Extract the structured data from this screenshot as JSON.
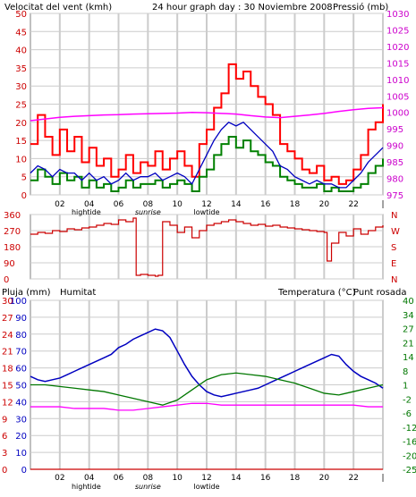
{
  "header": {
    "left_label": "Velocitat del vent (kmh)",
    "title": "24 hour graph day : 30 Noviembre 2008",
    "right_label": "Pressió (mb)"
  },
  "colors": {
    "wind_gust": "#ff0000",
    "wind_avg": "#008000",
    "wind_avg2": "#0000c0",
    "pressure": "#ff00ff",
    "direction": "#cc0000",
    "humidity": "#0000c0",
    "temperature": "#007700",
    "dewpoint": "#ff00ff",
    "rain": "#cc0000",
    "grid": "#cccccc",
    "frame": "#808080"
  },
  "time_axis": {
    "hour_ticks": [
      "02",
      "04",
      "06",
      "08",
      "10",
      "12",
      "14",
      "16",
      "18",
      "20",
      "22",
      "|"
    ],
    "events": [
      {
        "label": "hightide",
        "hour": 3.8
      },
      {
        "label": "sunrise",
        "hour": 8.0
      },
      {
        "label": "lowtide",
        "hour": 12.0
      }
    ]
  },
  "bottom_panel_labels": {
    "rain": "Pluja (mm)",
    "humidity": "Humitat",
    "temperature": "Temperatura (°C)",
    "dewpoint": "Punt rosada"
  },
  "chart_data": [
    {
      "type": "line",
      "title": "24 hour graph day : 30 Noviembre 2008",
      "ylabel": "Velocitat del vent (kmh)",
      "y2label": "Pressió (mb)",
      "x_unit": "hour",
      "xlim": [
        0,
        24
      ],
      "ylim": [
        0,
        50
      ],
      "y_ticks": [
        "0",
        "5",
        "10",
        "15",
        "20",
        "25",
        "30",
        "35",
        "40",
        "45",
        "50"
      ],
      "y2lim": [
        975,
        1030
      ],
      "y2_ticks": [
        "975",
        "980",
        "985",
        "990",
        "995",
        "1000",
        "1005",
        "1010",
        "1015",
        "1020",
        "1025",
        "1030"
      ],
      "grid": true,
      "series": [
        {
          "key": "gust",
          "x": [
            0,
            0.5,
            1,
            1.5,
            2,
            2.5,
            3,
            3.5,
            4,
            4.5,
            5,
            5.5,
            6,
            6.5,
            7,
            7.5,
            8,
            8.5,
            9,
            9.5,
            10,
            10.5,
            11,
            11.5,
            12,
            12.5,
            13,
            13.5,
            14,
            14.5,
            15,
            15.5,
            16,
            16.5,
            17,
            17.5,
            18,
            18.5,
            19,
            19.5,
            20,
            20.5,
            21,
            21.5,
            22,
            22.5,
            23,
            23.5,
            24
          ],
          "y": [
            14,
            22,
            16,
            11,
            18,
            12,
            16,
            9,
            13,
            8,
            10,
            5,
            7,
            11,
            6,
            9,
            8,
            12,
            7,
            10,
            12,
            8,
            5,
            14,
            18,
            24,
            28,
            36,
            32,
            34,
            30,
            27,
            25,
            22,
            14,
            12,
            10,
            7,
            6,
            8,
            4,
            5,
            3,
            4,
            7,
            11,
            18,
            20,
            25
          ]
        },
        {
          "key": "avg",
          "axis": "y",
          "x": [
            0,
            0.5,
            1,
            1.5,
            2,
            2.5,
            3,
            3.5,
            4,
            4.5,
            5,
            5.5,
            6,
            6.5,
            7,
            7.5,
            8,
            8.5,
            9,
            9.5,
            10,
            10.5,
            11,
            11.5,
            12,
            12.5,
            13,
            13.5,
            14,
            14.5,
            15,
            15.5,
            16,
            16.5,
            17,
            17.5,
            18,
            18.5,
            19,
            19.5,
            20,
            20.5,
            21,
            21.5,
            22,
            22.5,
            23,
            23.5,
            24
          ],
          "y": [
            4,
            7,
            5,
            3,
            6,
            4,
            5,
            2,
            4,
            2,
            3,
            1,
            2,
            4,
            2,
            3,
            3,
            4,
            2,
            3,
            4,
            3,
            1,
            5,
            7,
            11,
            14,
            16,
            13,
            15,
            12,
            11,
            9,
            8,
            5,
            4,
            3,
            2,
            2,
            3,
            1,
            2,
            1,
            1,
            2,
            3,
            6,
            8,
            10
          ]
        },
        {
          "key": "avg2",
          "axis": "y",
          "x": [
            0,
            0.5,
            1,
            1.5,
            2,
            2.5,
            3,
            3.5,
            4,
            4.5,
            5,
            5.5,
            6,
            6.5,
            7,
            7.5,
            8,
            8.5,
            9,
            9.5,
            10,
            10.5,
            11,
            11.5,
            12,
            12.5,
            13,
            13.5,
            14,
            14.5,
            15,
            15.5,
            16,
            16.5,
            17,
            17.5,
            18,
            18.5,
            19,
            19.5,
            20,
            20.5,
            21,
            21.5,
            22,
            22.5,
            23,
            23.5,
            24
          ],
          "y": [
            6,
            8,
            7,
            5,
            7,
            6,
            6,
            4,
            6,
            4,
            5,
            3,
            4,
            6,
            4,
            5,
            5,
            6,
            4,
            5,
            6,
            5,
            3,
            7,
            11,
            15,
            18,
            20,
            19,
            20,
            18,
            16,
            14,
            12,
            8,
            7,
            5,
            4,
            3,
            4,
            3,
            3,
            2,
            2,
            4,
            6,
            9,
            11,
            13
          ]
        },
        {
          "key": "pressure",
          "axis": "y2",
          "x": [
            0,
            1,
            2,
            3,
            4,
            5,
            6,
            7,
            8,
            9,
            10,
            11,
            12,
            13,
            14,
            15,
            16,
            17,
            18,
            19,
            20,
            21,
            22,
            23,
            24
          ],
          "y": [
            997.5,
            998.0,
            998.5,
            998.8,
            999.0,
            999.2,
            999.3,
            999.5,
            999.6,
            999.7,
            999.8,
            1000.0,
            999.9,
            999.7,
            999.5,
            999.0,
            998.6,
            998.4,
            998.8,
            999.2,
            999.7,
            1000.3,
            1000.8,
            1001.2,
            1001.4
          ]
        }
      ]
    },
    {
      "type": "line",
      "ylabel": "",
      "x_unit": "hour",
      "xlim": [
        0,
        24
      ],
      "ylim": [
        0,
        360
      ],
      "y_ticks": [
        "0",
        "90",
        "180",
        "270",
        "360"
      ],
      "y2_ticks": [
        "N",
        "W",
        "S",
        "E",
        "N"
      ],
      "grid": true,
      "series": [
        {
          "key": "direction",
          "x": [
            0,
            0.5,
            1,
            1.5,
            2,
            2.5,
            3,
            3.5,
            4,
            4.5,
            5,
            5.5,
            6,
            6.5,
            7,
            7.2,
            7.5,
            8,
            8.5,
            8.7,
            9,
            9.5,
            10,
            10.5,
            11,
            11.5,
            12,
            12.5,
            13,
            13.5,
            14,
            14.5,
            15,
            15.5,
            16,
            16.5,
            17,
            17.5,
            18,
            18.5,
            19,
            19.5,
            20,
            20.2,
            20.5,
            21,
            21.5,
            22,
            22.5,
            23,
            23.5,
            24
          ],
          "y": [
            250,
            260,
            255,
            270,
            265,
            280,
            275,
            285,
            290,
            300,
            310,
            305,
            330,
            320,
            340,
            20,
            25,
            20,
            15,
            20,
            320,
            300,
            260,
            290,
            230,
            270,
            300,
            310,
            320,
            330,
            320,
            310,
            300,
            305,
            295,
            300,
            290,
            285,
            280,
            275,
            270,
            265,
            260,
            100,
            200,
            260,
            240,
            280,
            250,
            270,
            290,
            300
          ]
        }
      ]
    },
    {
      "type": "line",
      "ylabel": "Pluja (mm)",
      "x_unit": "hour",
      "xlim": [
        0,
        24
      ],
      "rain_ticks": [
        "0",
        "3",
        "6",
        "9",
        "12",
        "15",
        "18",
        "21",
        "24",
        "27",
        "30"
      ],
      "humidity_ticks": [
        "0",
        "10",
        "20",
        "30",
        "40",
        "50",
        "60",
        "70",
        "80",
        "90",
        "100"
      ],
      "temp_ticks": [
        "-25",
        "-20",
        "-16",
        "-12",
        "-6",
        "-2",
        "1",
        "8",
        "14",
        "21",
        "27",
        "34",
        "40"
      ],
      "ylim": [
        0,
        100
      ],
      "grid": true,
      "series": [
        {
          "key": "humidity",
          "name": "Humitat",
          "x": [
            0,
            0.5,
            1,
            1.5,
            2,
            2.5,
            3,
            3.5,
            4,
            4.5,
            5,
            5.5,
            6,
            6.5,
            7,
            7.5,
            8,
            8.5,
            9,
            9.5,
            10,
            10.5,
            11,
            11.5,
            12,
            12.5,
            13,
            13.5,
            14,
            14.5,
            15,
            15.5,
            16,
            16.5,
            17,
            17.5,
            18,
            18.5,
            19,
            19.5,
            20,
            20.5,
            21,
            21.5,
            22,
            22.5,
            23,
            23.5,
            24
          ],
          "y": [
            55,
            53,
            52,
            53,
            54,
            56,
            58,
            60,
            62,
            64,
            66,
            68,
            72,
            74,
            77,
            79,
            81,
            83,
            82,
            78,
            70,
            62,
            55,
            50,
            46,
            44,
            43,
            44,
            45,
            46,
            47,
            48,
            50,
            52,
            54,
            56,
            58,
            60,
            62,
            64,
            66,
            68,
            67,
            62,
            58,
            55,
            53,
            51,
            48
          ]
        },
        {
          "key": "temperature",
          "name": "Temperatura (°C)",
          "x": [
            0,
            1,
            2,
            3,
            4,
            5,
            6,
            7,
            8,
            9,
            10,
            11,
            12,
            13,
            14,
            15,
            16,
            17,
            18,
            19,
            20,
            21,
            22,
            23,
            24
          ],
          "y": [
            50,
            50,
            49,
            48,
            47,
            46,
            44,
            42,
            40,
            38,
            41,
            47,
            53,
            56,
            57,
            56,
            55,
            53,
            51,
            48,
            45,
            44,
            46,
            48,
            50
          ]
        },
        {
          "key": "dewpoint",
          "name": "Punt rosada",
          "x": [
            0,
            1,
            2,
            3,
            4,
            5,
            6,
            7,
            8,
            9,
            10,
            11,
            12,
            13,
            14,
            15,
            16,
            17,
            18,
            19,
            20,
            21,
            22,
            23,
            24
          ],
          "y": [
            37,
            37,
            37,
            36,
            36,
            36,
            35,
            35,
            36,
            37,
            38,
            39,
            39,
            38,
            38,
            38,
            38,
            38,
            38,
            38,
            38,
            38,
            38,
            37,
            37
          ]
        },
        {
          "key": "rain",
          "name": "Pluja (mm)",
          "x": [
            0,
            24
          ],
          "y": [
            0,
            0
          ]
        }
      ]
    }
  ]
}
